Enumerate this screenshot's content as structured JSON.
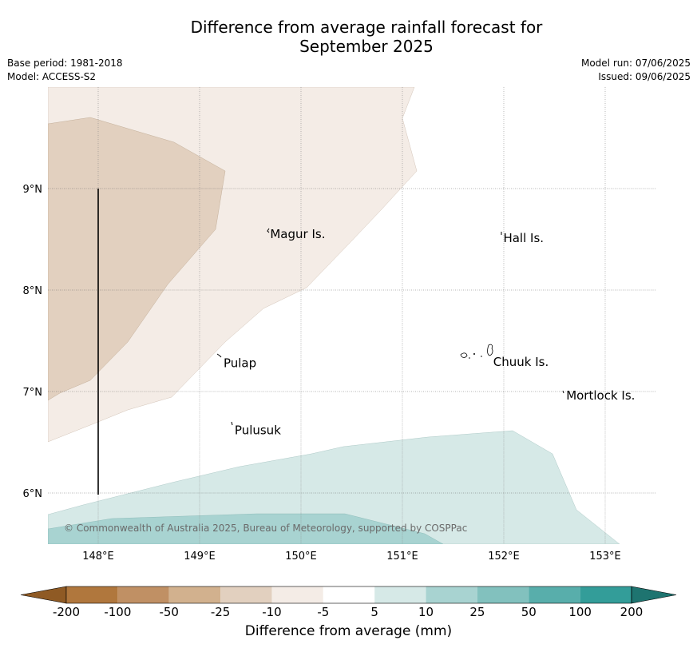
{
  "title": {
    "line1": "Difference from average rainfall forecast for",
    "line2": "September 2025"
  },
  "meta": {
    "base_period": "Base period: 1981-2018",
    "model": "Model: ACCESS-S2",
    "model_run": "Model run: 07/06/2025",
    "issued": "Issued: 09/06/2025"
  },
  "map": {
    "lon_range": [
      147.5,
      153.5
    ],
    "lat_range": [
      5.5,
      10.0
    ],
    "lon_ticks": [
      {
        "value": 148,
        "label": "148°E"
      },
      {
        "value": 149,
        "label": "149°E"
      },
      {
        "value": 150,
        "label": "150°E"
      },
      {
        "value": 151,
        "label": "151°E"
      },
      {
        "value": 152,
        "label": "152°E"
      },
      {
        "value": 153,
        "label": "153°E"
      }
    ],
    "lat_ticks": [
      {
        "value": 9,
        "label": "9°N"
      },
      {
        "value": 8,
        "label": "8°N"
      },
      {
        "value": 7,
        "label": "7°N"
      },
      {
        "value": 6,
        "label": "6°N"
      }
    ],
    "gridlines": true,
    "places": [
      {
        "name": "Magur Is.",
        "lon": 149.68,
        "lat": 8.55
      },
      {
        "name": "Hall Is.",
        "lon": 151.98,
        "lat": 8.51
      },
      {
        "name": "Pulap",
        "lon": 149.22,
        "lat": 7.28
      },
      {
        "name": "Chuuk Is.",
        "lon": 151.88,
        "lat": 7.29
      },
      {
        "name": "Mortlock Is.",
        "lon": 152.6,
        "lat": 6.96
      },
      {
        "name": "Pulusuk",
        "lon": 149.33,
        "lat": 6.62
      }
    ],
    "copyright": "© Commonwealth of Australia 2025, Bureau of Meteorology, supported by COSPPac"
  },
  "colorbar": {
    "tick_labels": [
      "-200",
      "-100",
      "-50",
      "-25",
      "-10",
      "-5",
      "5",
      "10",
      "25",
      "50",
      "100",
      "200"
    ],
    "colors": [
      "#b0773d",
      "#c09064",
      "#d2b18e",
      "#e2d0bf",
      "#f4ece6",
      "#ffffff",
      "#d6e9e7",
      "#a8d3d1",
      "#82c1be",
      "#58aeab",
      "#339d99"
    ],
    "extend_low_color": "#8f5a24",
    "extend_high_color": "#1e7470",
    "label": "Difference from average (mm)"
  },
  "chart_data": {
    "type": "heatmap",
    "description_fields": {
      "regions": [
        {
          "category": "-25 to -10",
          "color": "#e2d0bf"
        },
        {
          "category": "-10 to -5",
          "color": "#f4ece6"
        },
        {
          "category": "-5 to 5",
          "color": "#ffffff"
        },
        {
          "category": "5 to 10",
          "color": "#d6e9e7"
        },
        {
          "category": "10 to 25",
          "color": "#a8d3d1"
        }
      ]
    },
    "levels": [
      -200,
      -100,
      -50,
      -25,
      -10,
      -5,
      5,
      10,
      25,
      50,
      100,
      200
    ],
    "xlim": [
      147.5,
      153.5
    ],
    "ylim": [
      5.5,
      10.0
    ]
  }
}
